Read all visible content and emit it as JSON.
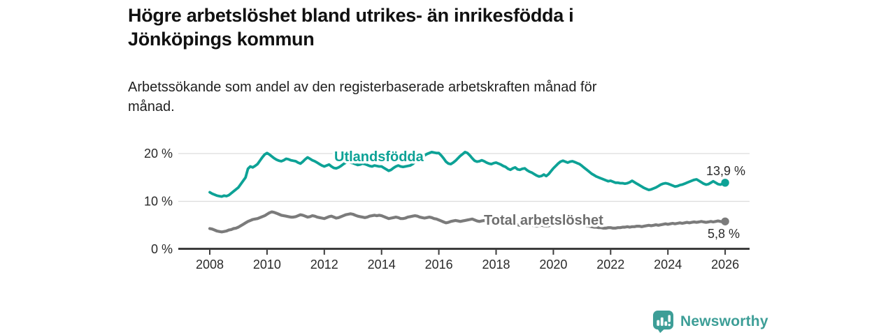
{
  "header": {
    "title_line1": "Högre arbetslöshet bland utrikes- än inrikesfödda i",
    "title_line2": "Jönköpings kommun",
    "subtitle_line1": "Arbetssökande som andel av den registerbaserade arbetskraften månad för",
    "subtitle_line2": "månad."
  },
  "footer": {
    "brand": "Newsworthy",
    "brand_color": "#3d9e97"
  },
  "colors": {
    "axis": "#3d3d3d",
    "grid": "#dcdcdc",
    "tick_text": "#2a2a2a",
    "value_label_text": "#2a2a2a",
    "background": "#ffffff"
  },
  "chart_data": {
    "type": "line",
    "unit": "%",
    "x_start_year": 2008,
    "x_end_year": 2026,
    "points_per_year": 12,
    "ylim": [
      0,
      21.5
    ],
    "grid": "horizontal",
    "y_ticks": [
      {
        "value": 0,
        "label": "0 %"
      },
      {
        "value": 10,
        "label": "10 %"
      },
      {
        "value": 20,
        "label": "20 %"
      }
    ],
    "x_ticks": [
      {
        "value": 2008,
        "label": "2008"
      },
      {
        "value": 2010,
        "label": "2010"
      },
      {
        "value": 2012,
        "label": "2012"
      },
      {
        "value": 2014,
        "label": "2014"
      },
      {
        "value": 2016,
        "label": "2016"
      },
      {
        "value": 2018,
        "label": "2018"
      },
      {
        "value": 2020,
        "label": "2020"
      },
      {
        "value": 2022,
        "label": "2022"
      },
      {
        "value": 2024,
        "label": "2024"
      },
      {
        "value": 2026,
        "label": "2026"
      }
    ],
    "series": [
      {
        "slug": "utlandsfodda",
        "name": "Utlandsfödda",
        "color": "#0da296",
        "label_color": "#0da296",
        "end_label": "13,9 %",
        "end_value": 13.9,
        "values": [
          11.9,
          11.6,
          11.4,
          11.2,
          11.1,
          11.0,
          11.2,
          11.1,
          11.3,
          11.7,
          12.1,
          12.5,
          12.9,
          13.6,
          14.3,
          15.0,
          16.8,
          17.3,
          17.1,
          17.4,
          17.8,
          18.5,
          19.2,
          19.8,
          20.1,
          19.8,
          19.4,
          19.0,
          18.7,
          18.5,
          18.4,
          18.6,
          18.9,
          18.8,
          18.6,
          18.5,
          18.4,
          18.1,
          17.9,
          18.3,
          18.8,
          19.2,
          18.9,
          18.6,
          18.4,
          18.1,
          17.8,
          17.5,
          17.3,
          17.5,
          17.7,
          17.3,
          17.0,
          16.9,
          17.1,
          17.4,
          17.8,
          18.1,
          18.3,
          18.1,
          18.0,
          17.8,
          17.6,
          17.7,
          17.9,
          17.8,
          17.6,
          17.4,
          17.3,
          17.5,
          17.4,
          17.3,
          17.3,
          17.0,
          16.7,
          16.4,
          16.6,
          17.0,
          17.3,
          17.5,
          17.3,
          17.2,
          17.3,
          17.4,
          17.5,
          17.8,
          18.2,
          18.6,
          19.0,
          19.3,
          19.6,
          19.9,
          20.1,
          20.3,
          20.2,
          20.1,
          20.1,
          19.6,
          19.0,
          18.3,
          17.9,
          17.8,
          18.1,
          18.5,
          19.0,
          19.5,
          19.9,
          20.3,
          20.1,
          19.6,
          19.0,
          18.5,
          18.3,
          18.4,
          18.6,
          18.4,
          18.1,
          17.9,
          17.8,
          18.0,
          18.1,
          17.9,
          17.7,
          17.4,
          17.2,
          16.8,
          16.6,
          16.9,
          17.1,
          16.7,
          16.6,
          16.8,
          16.9,
          16.5,
          16.2,
          16.0,
          15.7,
          15.4,
          15.2,
          15.3,
          15.6,
          15.3,
          15.7,
          16.3,
          16.9,
          17.4,
          17.9,
          18.3,
          18.5,
          18.3,
          18.1,
          18.3,
          18.4,
          18.2,
          18.0,
          17.8,
          17.4,
          17.0,
          16.6,
          16.2,
          15.8,
          15.5,
          15.2,
          15.0,
          14.8,
          14.6,
          14.4,
          14.2,
          14.3,
          14.1,
          13.9,
          13.9,
          13.8,
          13.8,
          13.7,
          13.8,
          14.0,
          14.3,
          14.0,
          13.7,
          13.4,
          13.1,
          12.8,
          12.6,
          12.4,
          12.5,
          12.7,
          12.9,
          13.2,
          13.5,
          13.7,
          13.8,
          13.7,
          13.5,
          13.3,
          13.1,
          13.2,
          13.4,
          13.5,
          13.7,
          13.9,
          14.1,
          14.3,
          14.5,
          14.6,
          14.3,
          14.0,
          13.7,
          13.5,
          13.6,
          13.9,
          14.2,
          13.9,
          13.6,
          13.5,
          13.7,
          13.9
        ]
      },
      {
        "slug": "total-arbetsloshet",
        "name": "Total arbetslöshet",
        "color": "#7b7b7b",
        "label_color": "#6e6e6e",
        "end_label": "5,8 %",
        "end_value": 5.8,
        "values": [
          4.3,
          4.2,
          4.0,
          3.8,
          3.7,
          3.6,
          3.7,
          3.8,
          4.0,
          4.1,
          4.3,
          4.4,
          4.6,
          4.9,
          5.2,
          5.5,
          5.8,
          6.0,
          6.2,
          6.3,
          6.4,
          6.6,
          6.8,
          7.0,
          7.3,
          7.6,
          7.8,
          7.7,
          7.5,
          7.3,
          7.1,
          7.0,
          6.9,
          6.8,
          6.7,
          6.7,
          6.8,
          7.0,
          7.2,
          7.1,
          6.9,
          6.7,
          6.8,
          7.0,
          6.9,
          6.7,
          6.6,
          6.5,
          6.4,
          6.6,
          6.8,
          6.9,
          6.7,
          6.5,
          6.6,
          6.8,
          7.0,
          7.2,
          7.3,
          7.4,
          7.3,
          7.1,
          6.9,
          6.8,
          6.7,
          6.6,
          6.7,
          6.9,
          7.0,
          7.1,
          7.0,
          7.1,
          7.0,
          6.8,
          6.6,
          6.4,
          6.5,
          6.6,
          6.7,
          6.6,
          6.4,
          6.4,
          6.5,
          6.7,
          6.8,
          6.9,
          7.0,
          6.9,
          6.7,
          6.6,
          6.5,
          6.6,
          6.7,
          6.6,
          6.4,
          6.3,
          6.1,
          5.9,
          5.7,
          5.5,
          5.6,
          5.8,
          5.9,
          6.0,
          5.9,
          5.8,
          5.9,
          6.0,
          6.1,
          6.2,
          6.3,
          6.1,
          5.9,
          5.8,
          5.9,
          6.0,
          5.8,
          5.7,
          5.6,
          5.7,
          5.6,
          5.7,
          5.8,
          5.6,
          5.4,
          5.3,
          5.2,
          5.3,
          5.2,
          5.1,
          5.0,
          5.1,
          5.2,
          5.3,
          5.2,
          5.0,
          4.9,
          4.8,
          4.9,
          5.0,
          4.9,
          4.8,
          4.9,
          5.0,
          5.2,
          5.4,
          5.6,
          5.8,
          5.9,
          5.8,
          5.7,
          5.6,
          5.5,
          5.4,
          5.3,
          5.2,
          5.1,
          5.0,
          4.9,
          4.8,
          4.7,
          4.6,
          4.6,
          4.5,
          4.5,
          4.4,
          4.4,
          4.5,
          4.5,
          4.4,
          4.4,
          4.5,
          4.5,
          4.6,
          4.6,
          4.7,
          4.6,
          4.7,
          4.7,
          4.8,
          4.8,
          4.7,
          4.8,
          4.9,
          5.0,
          4.9,
          5.0,
          5.1,
          5.0,
          5.1,
          5.2,
          5.3,
          5.2,
          5.3,
          5.4,
          5.3,
          5.4,
          5.5,
          5.4,
          5.5,
          5.6,
          5.5,
          5.6,
          5.7,
          5.6,
          5.7,
          5.8,
          5.7,
          5.6,
          5.7,
          5.8,
          5.7,
          5.8,
          5.9,
          5.8,
          5.7,
          5.8
        ]
      }
    ]
  }
}
